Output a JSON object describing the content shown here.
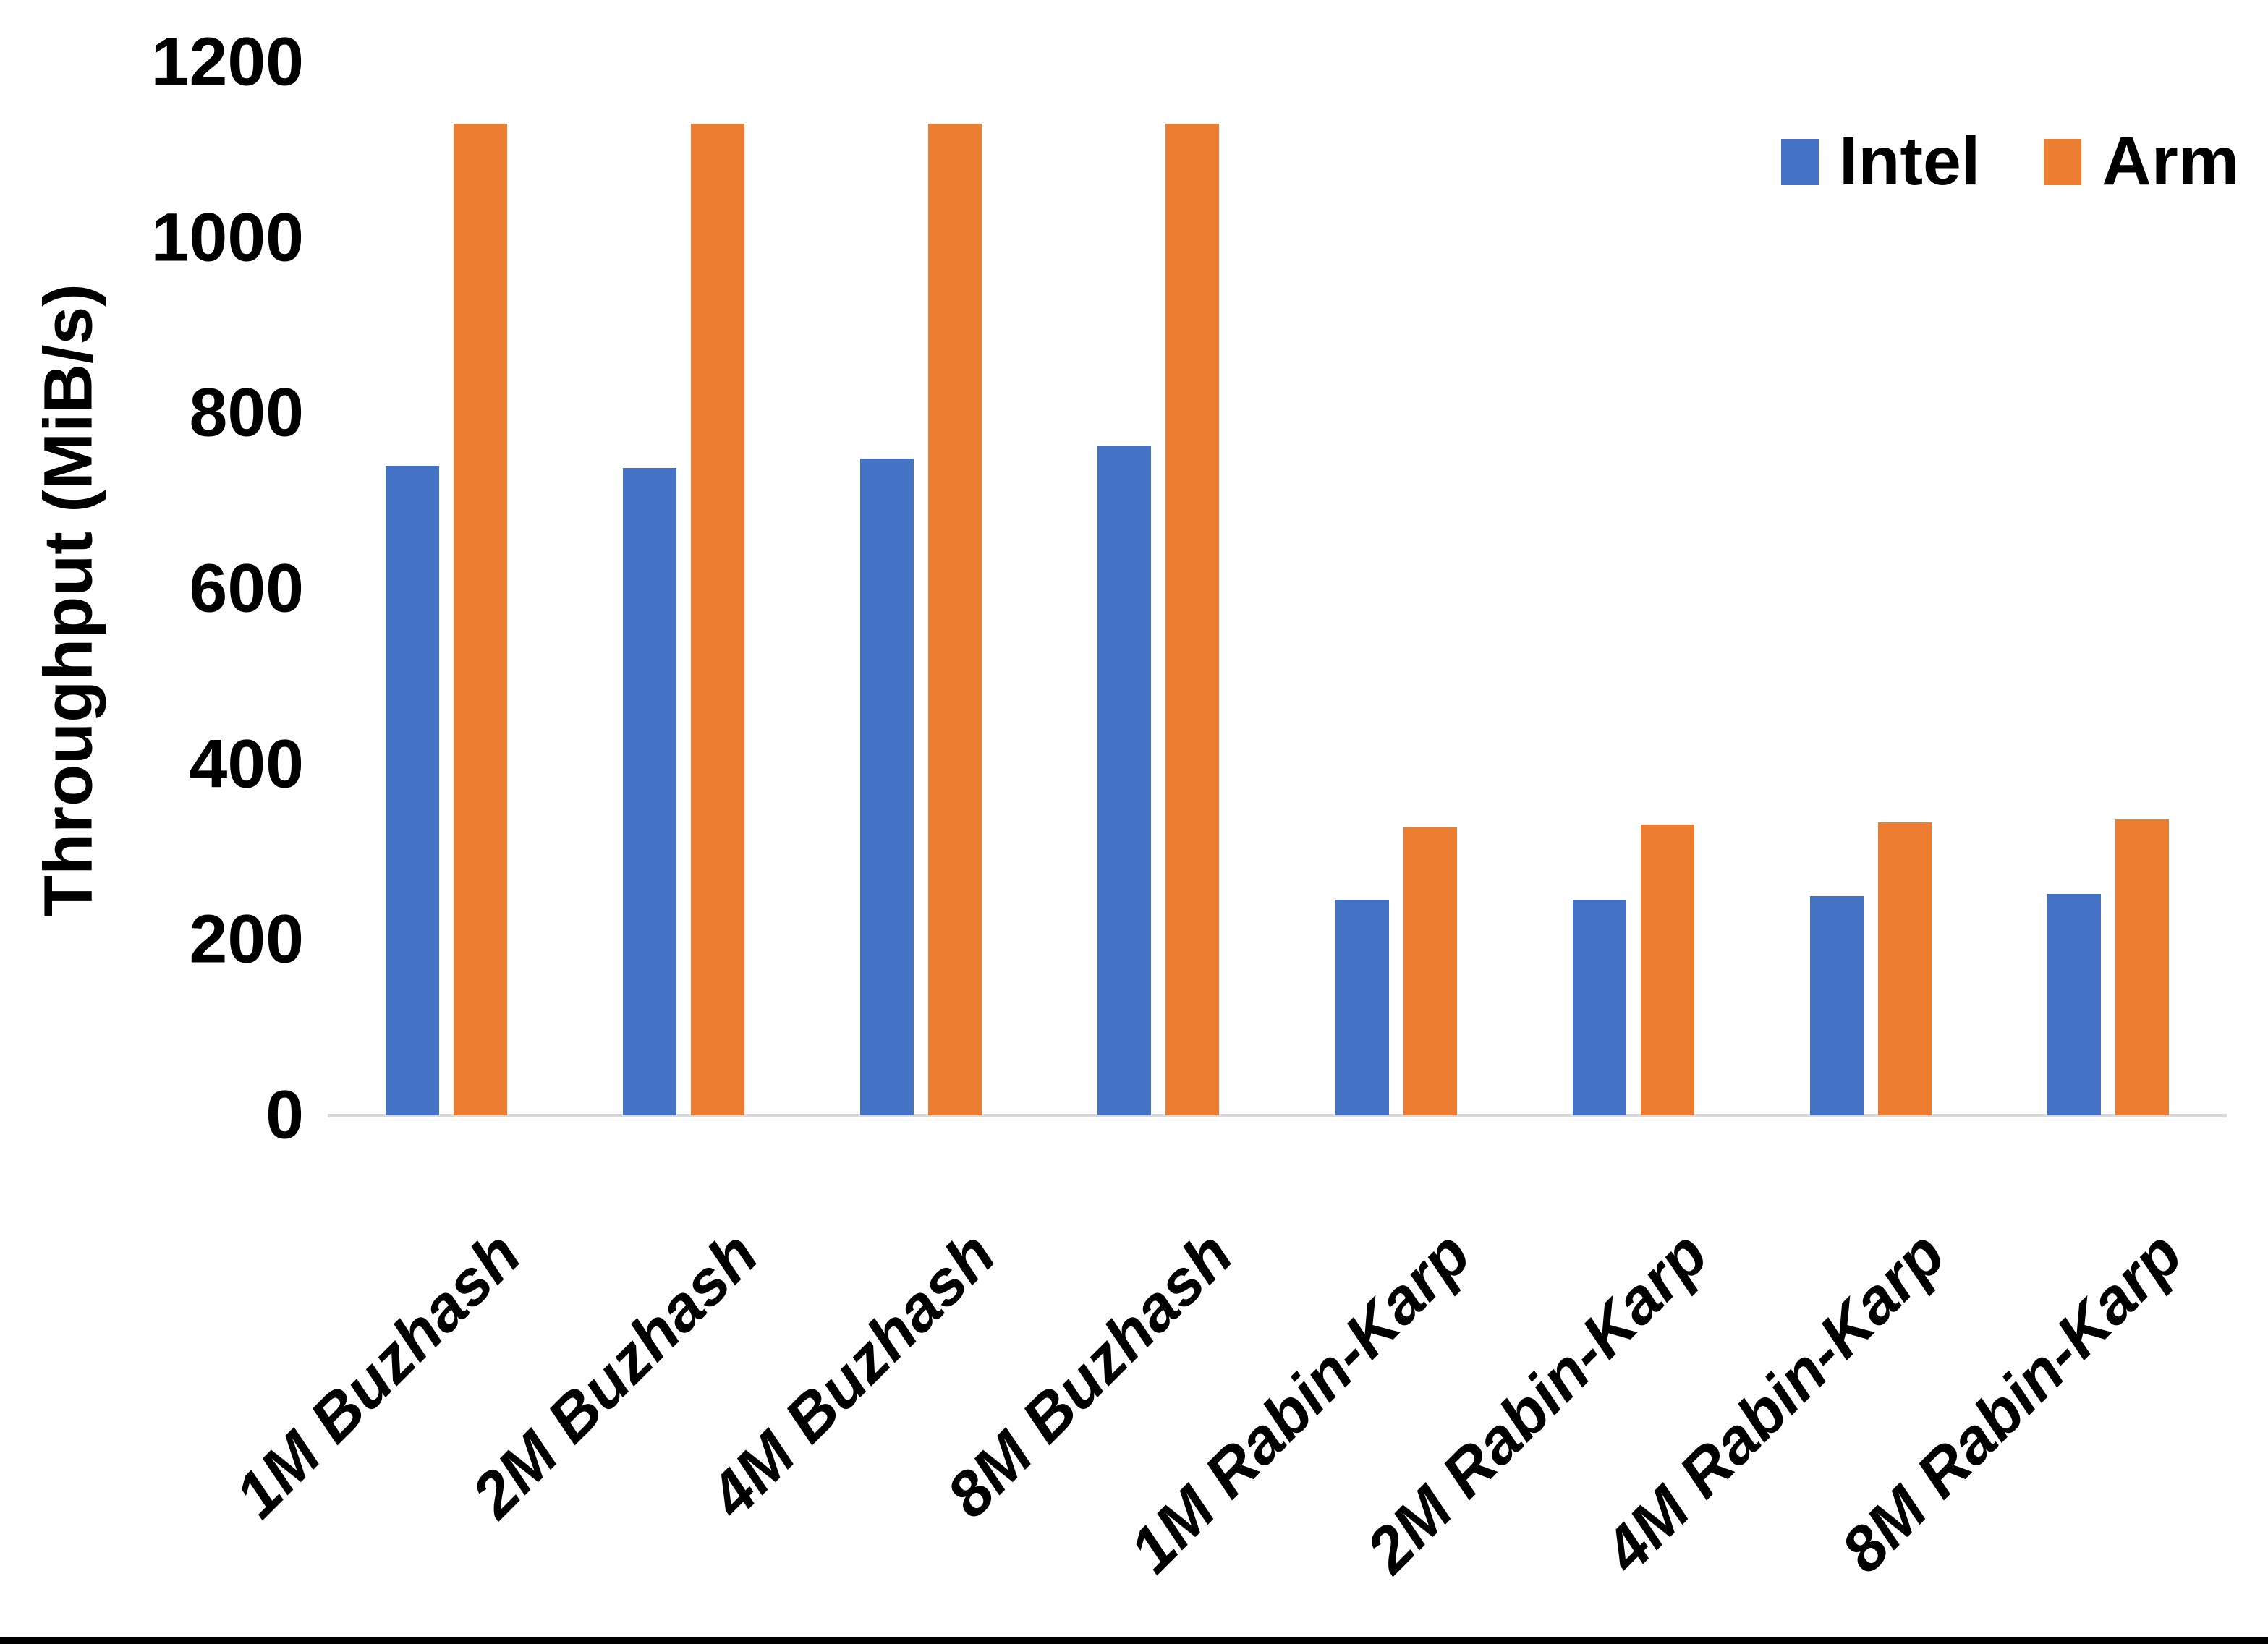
{
  "chart_data": {
    "type": "bar",
    "title": "",
    "xlabel": "",
    "ylabel": "Throughput (MiB/s)",
    "ylim": [
      0,
      1200
    ],
    "yticks": [
      0,
      200,
      400,
      600,
      800,
      1000,
      1200
    ],
    "grid": false,
    "legend_position": "top-right",
    "categories": [
      "1M Buzhash",
      "2M Buzhash",
      "4M Buzhash",
      "8M Buzhash",
      "1M Rabin-Karp",
      "2M Rabin-Karp",
      "4M Rabin-Karp",
      "8M Rabin-Karp"
    ],
    "series": [
      {
        "name": "Intel",
        "color": "#4472C4",
        "values": [
          740,
          738,
          748,
          763,
          246,
          246,
          250,
          252
        ]
      },
      {
        "name": "Arm",
        "color": "#ED7D31",
        "values": [
          1130,
          1130,
          1130,
          1130,
          328,
          331,
          334,
          337
        ]
      }
    ],
    "colors": {
      "axis_line": "#D9D9D9",
      "text": "#000000",
      "background": "#ffffff",
      "bottom_border": "#000000"
    }
  }
}
